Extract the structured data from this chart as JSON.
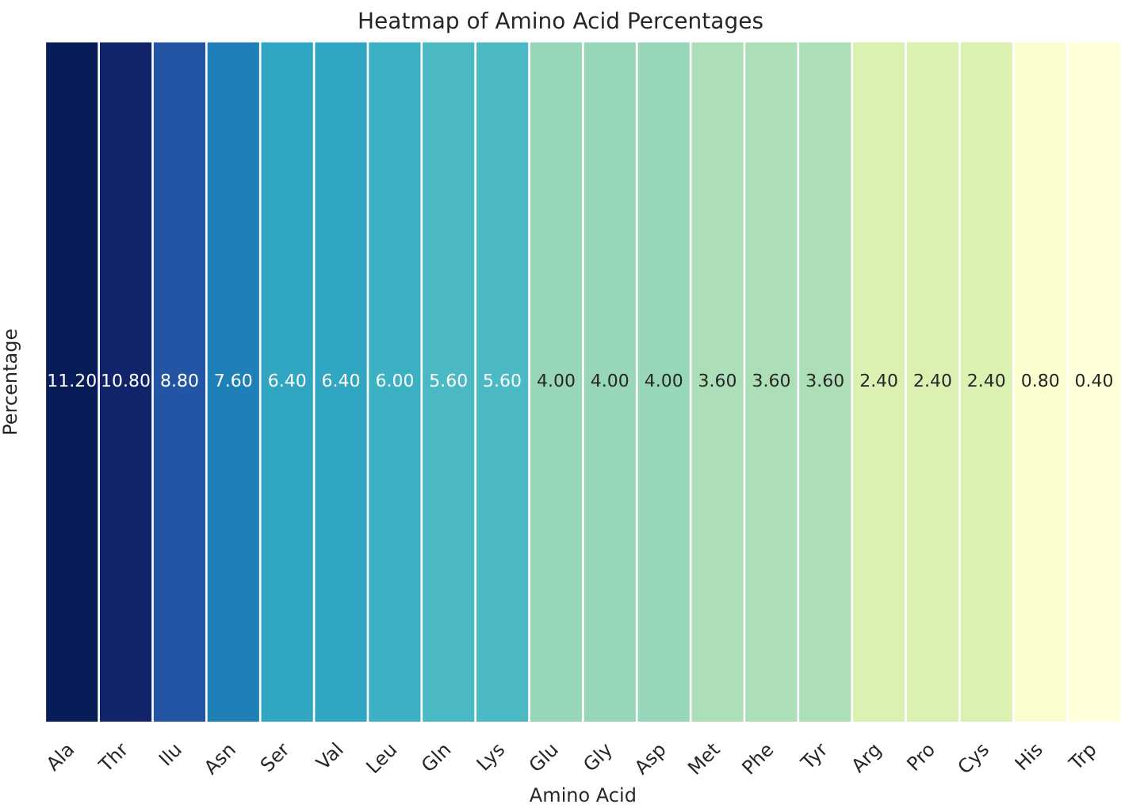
{
  "chart_data": {
    "type": "heatmap",
    "title": "Heatmap of Amino Acid Percentages",
    "xlabel": "Amino Acid",
    "ylabel": "Percentage",
    "categories": [
      "Ala",
      "Thr",
      "Ilu",
      "Asn",
      "Ser",
      "Val",
      "Leu",
      "Gln",
      "Lys",
      "Glu",
      "Gly",
      "Asp",
      "Met",
      "Phe",
      "Tyr",
      "Arg",
      "Pro",
      "Cys",
      "His",
      "Trp"
    ],
    "y_categories": [
      null
    ],
    "cells": [
      [
        11.2,
        10.8,
        8.8,
        7.6,
        6.4,
        6.4,
        6.0,
        5.6,
        5.6,
        4.0,
        4.0,
        4.0,
        3.6,
        3.6,
        3.6,
        2.4,
        2.4,
        2.4,
        0.8,
        0.4
      ]
    ],
    "cell_labels": [
      [
        "11.20",
        "10.80",
        "8.80",
        "7.60",
        "6.40",
        "6.40",
        "6.00",
        "5.60",
        "5.60",
        "4.00",
        "4.00",
        "4.00",
        "3.60",
        "3.60",
        "3.60",
        "2.40",
        "2.40",
        "2.40",
        "0.80",
        "0.40"
      ]
    ]
  }
}
